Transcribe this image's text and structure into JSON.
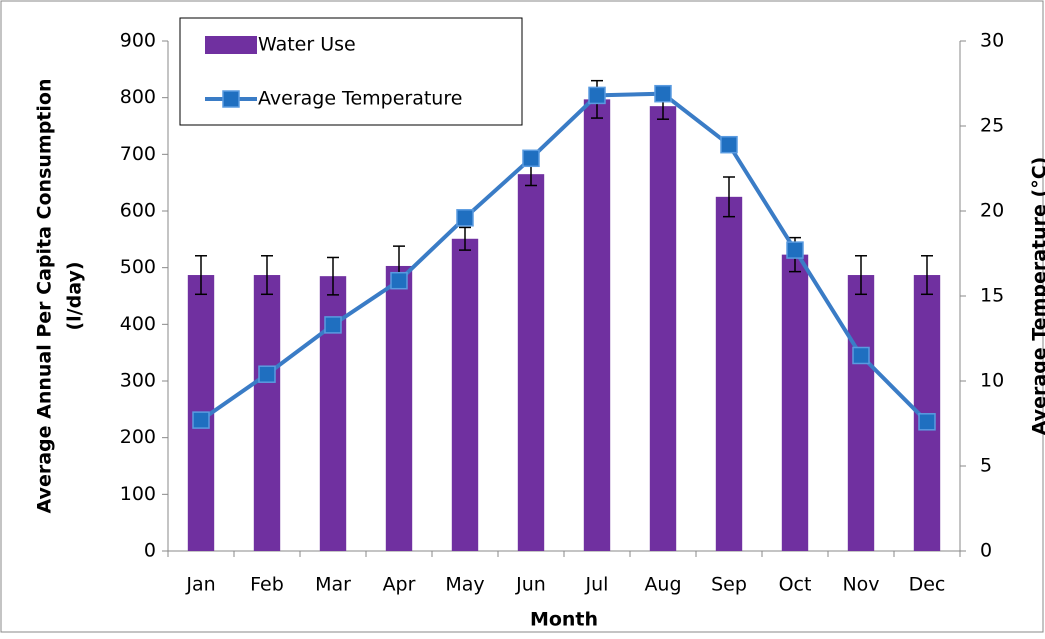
{
  "chart_data": {
    "type": "bar_line",
    "x_label": "Month",
    "y_label": [
      "Average Annual Per Capita Consumption",
      "(l/day)"
    ],
    "y2_label": "Average Temperature (°C)",
    "categories": [
      "Jan",
      "Feb",
      "Mar",
      "Apr",
      "May",
      "Jun",
      "Jul",
      "Aug",
      "Sep",
      "Oct",
      "Nov",
      "Dec"
    ],
    "series": [
      {
        "name": "Water Use",
        "type": "bar",
        "color": "#7030a0",
        "values": [
          487,
          487,
          485,
          503,
          551,
          665,
          797,
          785,
          625,
          523,
          487,
          487
        ],
        "errors": [
          34,
          34,
          33,
          35,
          20,
          20,
          33,
          23,
          35,
          30,
          34,
          34
        ]
      },
      {
        "name": "Average Temperature",
        "type": "line",
        "axis": "y2",
        "color": "#3a7cc6",
        "values": [
          7.7,
          10.4,
          13.3,
          15.9,
          19.6,
          23.1,
          26.8,
          26.9,
          23.9,
          17.7,
          11.5,
          7.6
        ]
      }
    ],
    "ylim": [
      0,
      900
    ],
    "yticks": [
      0,
      100,
      200,
      300,
      400,
      500,
      600,
      700,
      800,
      900
    ],
    "y2lim": [
      0,
      30
    ],
    "y2ticks": [
      0,
      5,
      10,
      15,
      20,
      25,
      30
    ],
    "legend": "upper-left"
  }
}
